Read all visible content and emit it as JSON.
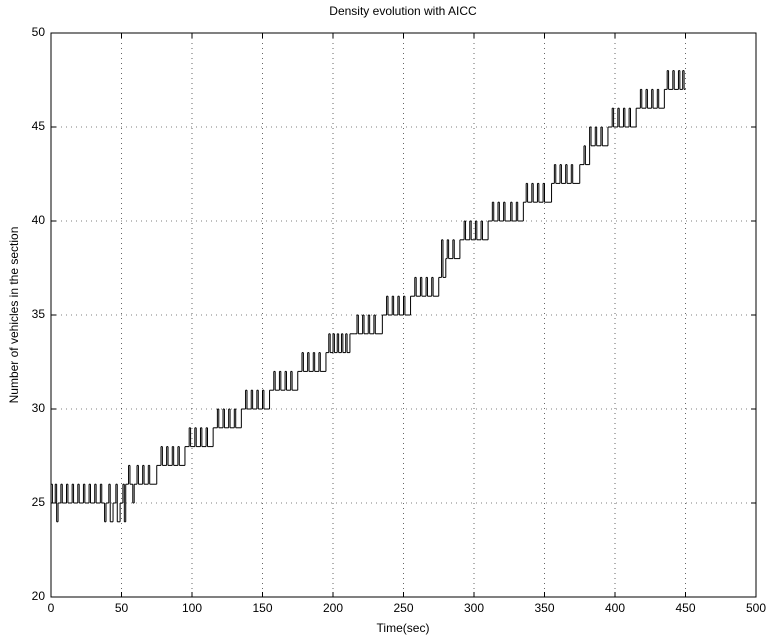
{
  "chart_data": {
    "type": "line",
    "step": true,
    "title": "Density evolution with AICC",
    "x_label": "Time(sec)",
    "y_label": "Number of vehicles in the section",
    "xlim": [
      0,
      500
    ],
    "xticks": [
      0,
      50,
      100,
      150,
      200,
      250,
      300,
      350,
      400,
      450,
      500
    ],
    "ylim": [
      20,
      50
    ],
    "yticks": [
      20,
      25,
      30,
      35,
      40,
      45,
      50
    ],
    "grid": true,
    "series": [
      {
        "color": "#000000",
        "x": [
          0,
          1,
          3,
          4,
          5,
          7,
          8,
          11,
          12,
          15,
          16,
          19,
          20,
          23,
          24,
          27,
          28,
          31,
          32,
          35,
          36,
          38,
          39,
          41,
          42,
          44,
          46,
          47,
          49,
          51,
          52,
          53,
          55,
          56,
          58,
          59,
          61,
          62,
          65,
          66,
          69,
          70,
          75,
          78,
          79,
          82,
          83,
          86,
          87,
          90,
          91,
          95,
          98,
          99,
          102,
          103,
          106,
          107,
          110,
          111,
          115,
          118,
          119,
          122,
          123,
          126,
          127,
          130,
          131,
          135,
          138,
          139,
          142,
          143,
          146,
          147,
          150,
          151,
          155,
          158,
          159,
          162,
          163,
          166,
          167,
          170,
          171,
          175,
          178,
          179,
          182,
          183,
          186,
          187,
          190,
          191,
          195,
          197,
          198,
          200,
          201,
          203,
          204,
          206,
          207,
          209,
          210,
          212,
          215,
          217,
          218,
          221,
          222,
          225,
          226,
          229,
          230,
          235,
          238,
          239,
          242,
          243,
          246,
          247,
          250,
          251,
          255,
          258,
          259,
          262,
          263,
          266,
          267,
          270,
          271,
          275,
          277,
          278,
          280,
          281,
          282,
          285,
          286,
          290,
          293,
          294,
          297,
          298,
          301,
          302,
          305,
          306,
          310,
          313,
          314,
          317,
          318,
          321,
          322,
          326,
          327,
          330,
          331,
          335,
          337,
          338,
          341,
          342,
          345,
          346,
          349,
          350,
          355,
          357,
          358,
          361,
          362,
          365,
          366,
          369,
          370,
          375,
          378,
          379,
          382,
          383,
          386,
          387,
          390,
          391,
          395,
          398,
          399,
          402,
          403,
          406,
          407,
          410,
          411,
          415,
          418,
          419,
          422,
          423,
          426,
          427,
          430,
          431,
          435,
          437,
          438,
          441,
          442,
          445,
          446,
          448,
          449,
          450
        ],
        "values": [
          26,
          25,
          26,
          24,
          25,
          26,
          25,
          26,
          25,
          26,
          25,
          26,
          25,
          26,
          25,
          26,
          25,
          26,
          25,
          26,
          25,
          24,
          25,
          26,
          24,
          25,
          26,
          24,
          25,
          26,
          24,
          26,
          27,
          26,
          25,
          26,
          27,
          26,
          27,
          26,
          27,
          26,
          27,
          28,
          27,
          28,
          27,
          28,
          27,
          28,
          27,
          28,
          29,
          28,
          29,
          28,
          29,
          28,
          29,
          28,
          29,
          30,
          29,
          30,
          29,
          30,
          29,
          30,
          29,
          30,
          31,
          30,
          31,
          30,
          31,
          30,
          31,
          30,
          31,
          32,
          31,
          32,
          31,
          32,
          31,
          32,
          31,
          32,
          33,
          32,
          33,
          32,
          33,
          32,
          33,
          32,
          33,
          34,
          33,
          34,
          33,
          34,
          33,
          34,
          33,
          34,
          33,
          34,
          34,
          35,
          34,
          35,
          34,
          35,
          34,
          35,
          34,
          35,
          36,
          35,
          36,
          35,
          36,
          35,
          36,
          35,
          36,
          37,
          36,
          37,
          36,
          37,
          36,
          37,
          36,
          37,
          39,
          37,
          38,
          39,
          38,
          39,
          38,
          39,
          40,
          39,
          40,
          39,
          40,
          39,
          40,
          39,
          40,
          41,
          40,
          41,
          40,
          41,
          40,
          41,
          40,
          41,
          40,
          41,
          42,
          41,
          42,
          41,
          42,
          41,
          42,
          41,
          42,
          43,
          42,
          43,
          42,
          43,
          42,
          43,
          42,
          43,
          44,
          43,
          45,
          44,
          45,
          44,
          45,
          44,
          45,
          46,
          45,
          46,
          45,
          46,
          45,
          46,
          45,
          46,
          47,
          46,
          47,
          46,
          47,
          46,
          47,
          46,
          47,
          48,
          47,
          48,
          47,
          48,
          47,
          48,
          47,
          47
        ]
      }
    ]
  }
}
